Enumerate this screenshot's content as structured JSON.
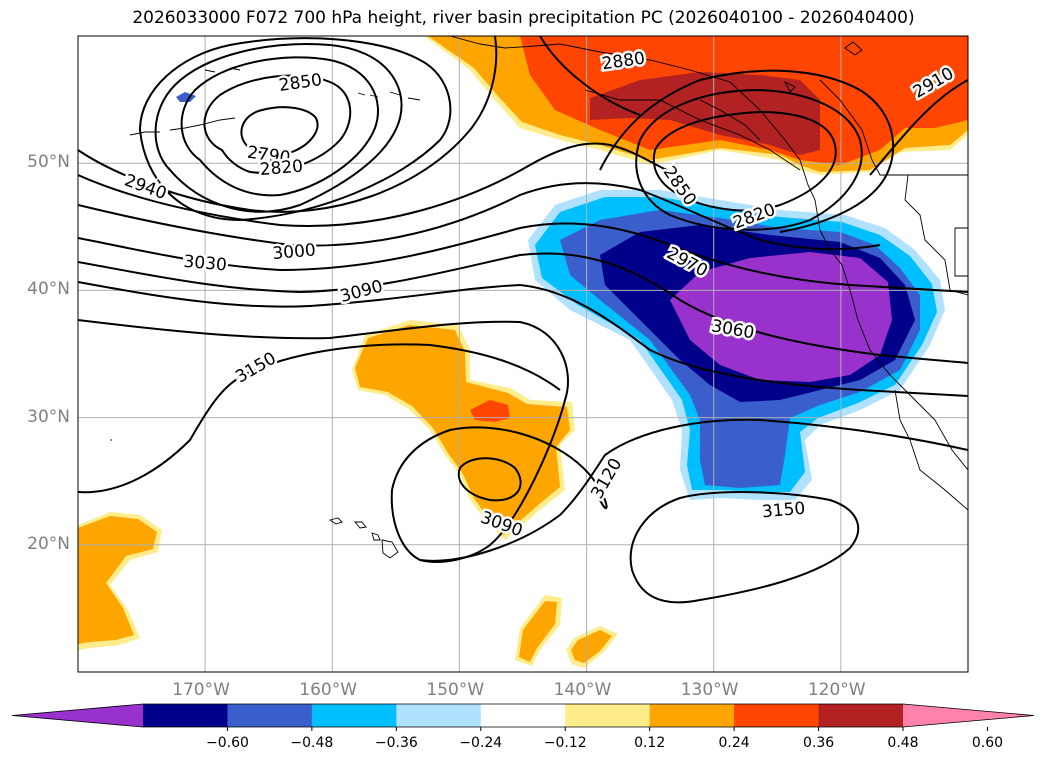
{
  "title": "2026033000 F072 700 hPa height, river basin precipitation PC (2026040100 - 2026040400)",
  "map": {
    "projection": "PlateCarree",
    "lon_range": [
      -180,
      -110
    ],
    "lat_range": [
      10,
      60
    ],
    "gridline_color": "#b0b0b0",
    "lat_labels": [
      {
        "lat": 20,
        "text": "20°N"
      },
      {
        "lat": 30,
        "text": "30°N"
      },
      {
        "lat": 40,
        "text": "40°N"
      },
      {
        "lat": 50,
        "text": "50°N"
      }
    ],
    "lon_labels": [
      {
        "lon": -170,
        "text": "170°W"
      },
      {
        "lon": -160,
        "text": "160°W"
      },
      {
        "lon": -150,
        "text": "150°W"
      },
      {
        "lon": -140,
        "text": "140°W"
      },
      {
        "lon": -130,
        "text": "130°W"
      },
      {
        "lon": -120,
        "text": "120°W"
      }
    ],
    "label_color": "#808080"
  },
  "contours": {
    "variable": "700 hPa geopotential height (m)",
    "labels": [
      {
        "text": "2850",
        "lon": -162.5,
        "lat": 56.3,
        "angle": -8
      },
      {
        "text": "2790",
        "lon": -165,
        "lat": 50.6,
        "angle": 8
      },
      {
        "text": "2820",
        "lon": -164,
        "lat": 49.6,
        "angle": -5
      },
      {
        "text": "2940",
        "lon": -174.7,
        "lat": 48.1,
        "angle": 20
      },
      {
        "text": "3030",
        "lon": -170,
        "lat": 42.1,
        "angle": 5
      },
      {
        "text": "3000",
        "lon": -163,
        "lat": 43.0,
        "angle": -5
      },
      {
        "text": "3090",
        "lon": -157.7,
        "lat": 39.9,
        "angle": -15
      },
      {
        "text": "3150",
        "lon": -166,
        "lat": 33.9,
        "angle": -30
      },
      {
        "text": "2880",
        "lon": -137.1,
        "lat": 58.0,
        "angle": -8
      },
      {
        "text": "2910",
        "lon": -112.7,
        "lat": 56.3,
        "angle": -30
      },
      {
        "text": "2850",
        "lon": -132.7,
        "lat": 48.2,
        "angle": 55
      },
      {
        "text": "2820",
        "lon": -126.8,
        "lat": 45.8,
        "angle": -20
      },
      {
        "text": "2970",
        "lon": -132.1,
        "lat": 42.2,
        "angle": 28
      },
      {
        "text": "3060",
        "lon": -128.5,
        "lat": 36.9,
        "angle": 10
      },
      {
        "text": "3120",
        "lon": -138.4,
        "lat": 25.2,
        "angle": -60
      },
      {
        "text": "3090",
        "lon": -146.7,
        "lat": 21.6,
        "angle": 20
      },
      {
        "text": "3150",
        "lon": -124.5,
        "lat": 22.7,
        "angle": -5
      }
    ]
  },
  "shading": {
    "variable": "river basin precipitation PC",
    "regions": [
      "positive anomaly over Gulf of Alaska / British Columbia (up to >0.48)",
      "negative anomaly over NE Pacific off California (down to <-0.60)",
      "positive anomaly NE of Hawaii (0.24-0.48)",
      "positive anomaly W of Hawaii (0.24-0.36)"
    ]
  },
  "colorbar": {
    "levels": [
      -0.6,
      -0.48,
      -0.36,
      -0.24,
      -0.12,
      0.12,
      0.24,
      0.36,
      0.48,
      0.6
    ],
    "colors": [
      "#9932CC",
      "#00008B",
      "#3A5FCD",
      "#00BFFF",
      "#B0E2FF",
      "#FFFFFF",
      "#FFEC8B",
      "#FFA500",
      "#FF4500",
      "#B22222",
      "#FF82AB"
    ],
    "tick_labels": [
      "−0.60",
      "−0.48",
      "−0.36",
      "−0.24",
      "−0.12",
      "0.12",
      "0.24",
      "0.36",
      "0.48",
      "0.60"
    ],
    "extend": "both"
  }
}
